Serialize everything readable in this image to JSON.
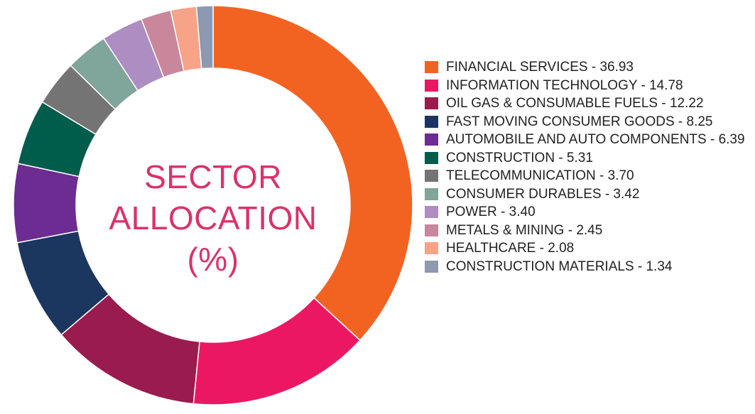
{
  "chart_data": {
    "type": "pie",
    "donut": true,
    "center_title": [
      "SECTOR",
      "ALLOCATION",
      "(%)"
    ],
    "legend_placement": "right",
    "slices": [
      {
        "label": "FINANCIAL SERVICES",
        "value": 36.93,
        "value_text": "36.93",
        "color": "#f26322",
        "legend_text": "FINANCIAL SERVICES - 36.93"
      },
      {
        "label": "INFORMATION TECHNOLOGY",
        "value": 14.78,
        "value_text": "14.78",
        "color": "#ec1763",
        "legend_text": "INFORMATION TECHNOLOGY - 14.78"
      },
      {
        "label": "OIL GAS & CONSUMABLE FUELS",
        "value": 12.22,
        "value_text": "12.22",
        "color": "#9a1b4e",
        "legend_text": "OIL GAS & CONSUMABLE FUELS - 12.22"
      },
      {
        "label": "FAST MOVING CONSUMER GOODS",
        "value": 8.25,
        "value_text": "8.25",
        "color": "#1b365f",
        "legend_text": "FAST MOVING CONSUMER GOODS - 8.25"
      },
      {
        "label": "AUTOMOBILE AND AUTO COMPONENTS",
        "value": 6.39,
        "value_text": "6.39",
        "color": "#6d2c91",
        "legend_text": "AUTOMOBILE AND AUTO COMPONENTS - 6.39"
      },
      {
        "label": "CONSTRUCTION",
        "value": 5.31,
        "value_text": "5.31",
        "color": "#005c4b",
        "legend_text": "CONSTRUCTION - 5.31"
      },
      {
        "label": "TELECOMMUNICATION",
        "value": 3.7,
        "value_text": "3.70",
        "color": "#747474",
        "legend_text": "TELECOMMUNICATION - 3.70"
      },
      {
        "label": "CONSUMER DURABLES",
        "value": 3.42,
        "value_text": "3.42",
        "color": "#80a59a",
        "legend_text": "CONSUMER DURABLES - 3.42"
      },
      {
        "label": "POWER",
        "value": 3.4,
        "value_text": "3.40",
        "color": "#ae8dc2",
        "legend_text": "POWER - 3.40"
      },
      {
        "label": "METALS & MINING",
        "value": 2.45,
        "value_text": "2.45",
        "color": "#c9879c",
        "legend_text": "METALS & MINING - 2.45"
      },
      {
        "label": "HEALTHCARE",
        "value": 2.08,
        "value_text": "2.08",
        "color": "#f7a388",
        "legend_text": "HEALTHCARE - 2.08"
      },
      {
        "label": "CONSTRUCTION MATERIALS",
        "value": 1.34,
        "value_text": "1.34",
        "color": "#8c99b0",
        "legend_text": "CONSTRUCTION MATERIALS - 1.34"
      }
    ]
  }
}
